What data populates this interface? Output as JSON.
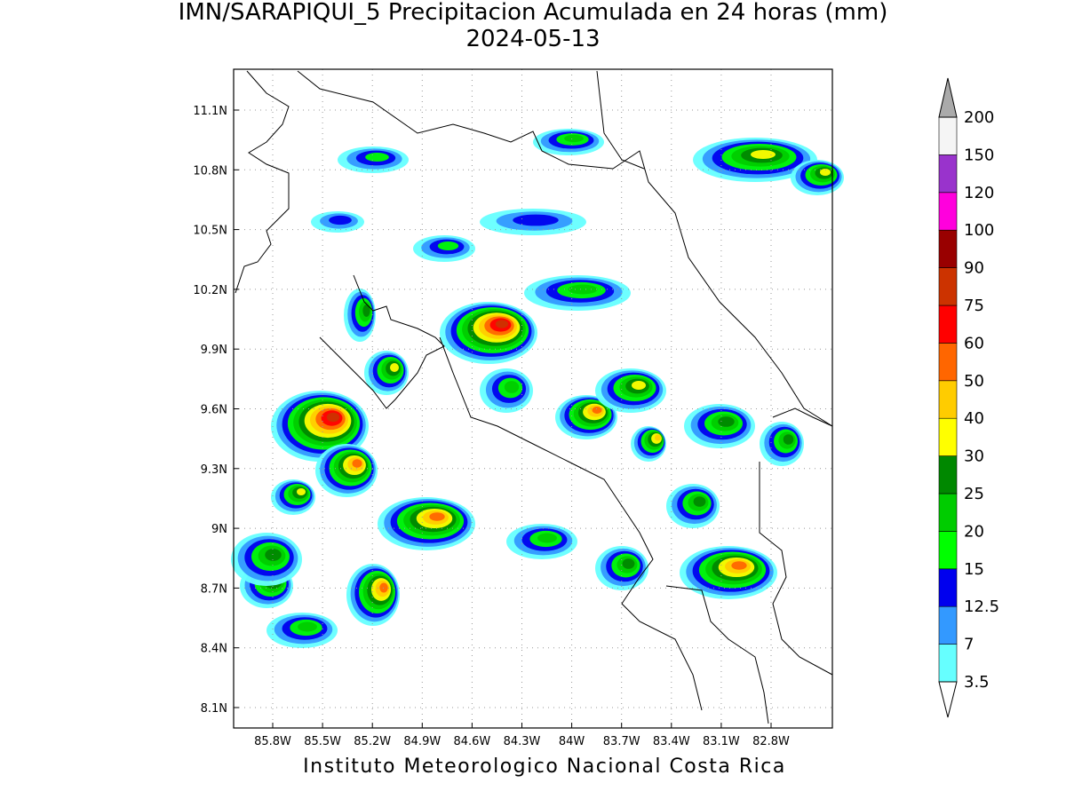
{
  "header": {
    "title": "IMN/SARAPIQUI_5 Precipitacion Acumulada en 24 horas (mm)",
    "date": "2024-05-13"
  },
  "map": {
    "lat_labels": [
      "11.1N",
      "10.8N",
      "10.5N",
      "10.2N",
      "9.9N",
      "9.6N",
      "9.3N",
      "9N",
      "8.7N",
      "8.4N",
      "8.1N"
    ],
    "lon_labels": [
      "85.8W",
      "85.5W",
      "85.2W",
      "84.9W",
      "84.6W",
      "84.3W",
      "84W",
      "83.7W",
      "83.4W",
      "83.1W",
      "82.8W"
    ]
  },
  "colorbar": {
    "labels": [
      "3.5",
      "7",
      "12.5",
      "15",
      "20",
      "25",
      "30",
      "40",
      "50",
      "60",
      "75",
      "90",
      "100",
      "120",
      "150",
      "200"
    ],
    "colors": [
      "#66ffff",
      "#3399ff",
      "#0000ee",
      "#00ff00",
      "#00cc00",
      "#008800",
      "#ffff00",
      "#ffcc00",
      "#ff6600",
      "#ff0000",
      "#cc3300",
      "#990000",
      "#ff00dd",
      "#9933cc",
      "#f5f5f5"
    ],
    "over_color": "#aaaaaa",
    "under_color": "#ffffff"
  },
  "footer": {
    "credit": "Instituto Meteorologico Nacional Costa Rica"
  }
}
